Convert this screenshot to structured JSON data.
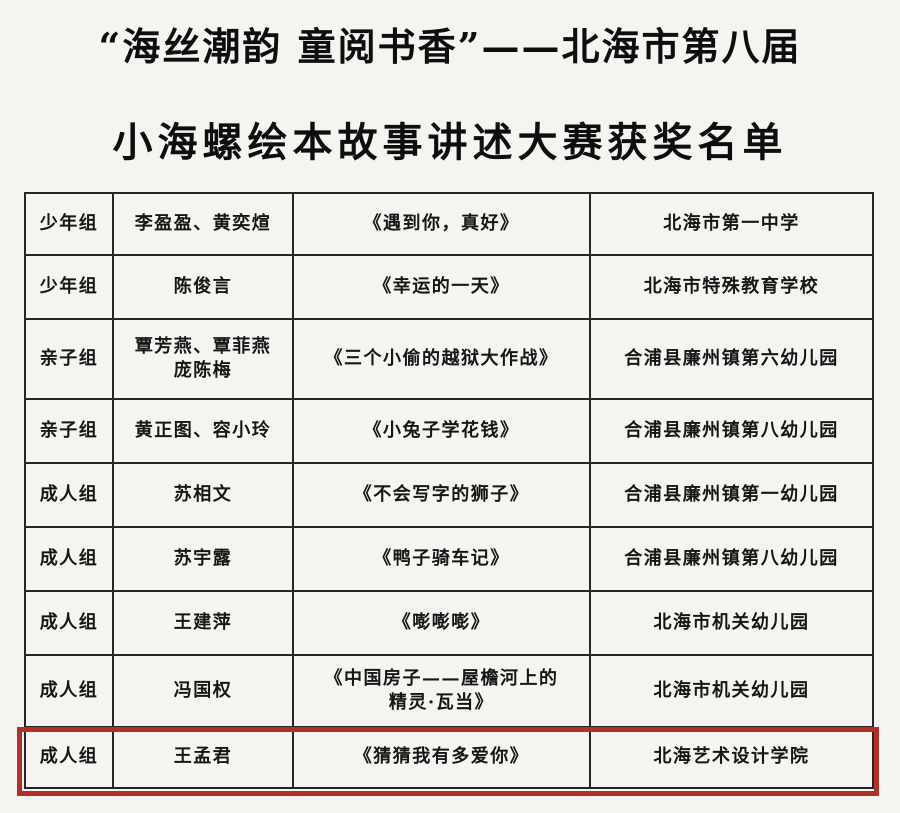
{
  "title": {
    "line1": "“海丝潮韵 童阅书香”——北海市第八届",
    "line2": "小海螺绘本故事讲述大赛获奖名单"
  },
  "table": {
    "rows": [
      {
        "group": "少年组",
        "names": "李盈盈、黄奕煊",
        "story": "《遇到你，真好》",
        "school": "北海市第一中学",
        "highlighted": false
      },
      {
        "group": "少年组",
        "names": "陈俊言",
        "story": "《幸运的一天》",
        "school": "北海市特殊教育学校",
        "highlighted": false
      },
      {
        "group": "亲子组",
        "names": "覃芳燕、覃菲燕\n庞陈梅",
        "story": "《三个小偷的越狱大作战》",
        "school": "合浦县廉州镇第六幼儿园",
        "highlighted": false
      },
      {
        "group": "亲子组",
        "names": "黄正图、容小玲",
        "story": "《小兔子学花钱》",
        "school": "合浦县廉州镇第八幼儿园",
        "highlighted": false
      },
      {
        "group": "成人组",
        "names": "苏相文",
        "story": "《不会写字的狮子》",
        "school": "合浦县廉州镇第一幼儿园",
        "highlighted": false
      },
      {
        "group": "成人组",
        "names": "苏宇露",
        "story": "《鸭子骑车记》",
        "school": "合浦县廉州镇第八幼儿园",
        "highlighted": false
      },
      {
        "group": "成人组",
        "names": "王建萍",
        "story": "《嘭嘭嘭》",
        "school": "北海市机关幼儿园",
        "highlighted": false
      },
      {
        "group": "成人组",
        "names": "冯国权",
        "story": "《中国房子——屋檐河上的\n精灵·瓦当》",
        "school": "北海市机关幼儿园",
        "highlighted": false
      },
      {
        "group": "成人组",
        "names": "王孟君",
        "story": "《猜猜我有多爱你》",
        "school": "北海艺术设计学院",
        "highlighted": true
      }
    ]
  },
  "colors": {
    "highlight_red": "#b23026",
    "table_border": "#262626",
    "background": "#f6f4f1",
    "text": "#161616"
  }
}
